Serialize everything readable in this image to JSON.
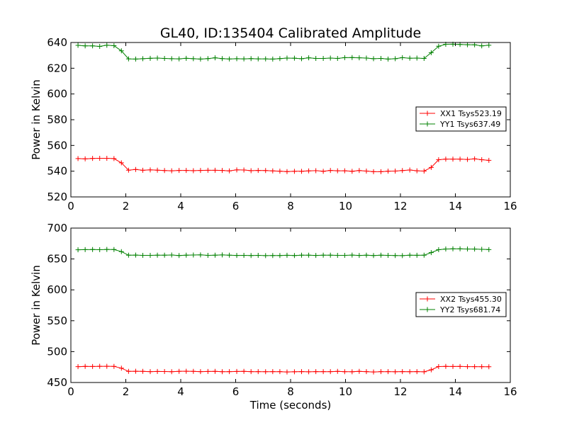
{
  "figure": {
    "title": "GL40, ID:135404 Calibrated Amplitude",
    "xlabel": "Time (seconds)"
  },
  "colors": {
    "red": "#ff0000",
    "green": "#008000"
  },
  "chart_data": [
    {
      "type": "line",
      "title": "GL40, ID:135404 Calibrated Amplitude",
      "xlabel": "",
      "ylabel": "Power in Kelvin",
      "xlim": [
        0,
        16
      ],
      "ylim": [
        520,
        640
      ],
      "xticks": [
        0,
        2,
        4,
        6,
        8,
        10,
        12,
        14,
        16
      ],
      "yticks": [
        520,
        540,
        560,
        580,
        600,
        620,
        640
      ],
      "grid": false,
      "legend_position": "right",
      "x": [
        0.26,
        0.52,
        0.79,
        1.05,
        1.31,
        1.57,
        1.84,
        2.1,
        2.36,
        2.62,
        2.89,
        3.15,
        3.41,
        3.67,
        3.94,
        4.2,
        4.46,
        4.72,
        4.99,
        5.25,
        5.51,
        5.77,
        6.04,
        6.3,
        6.56,
        6.82,
        7.09,
        7.35,
        7.61,
        7.87,
        8.14,
        8.4,
        8.66,
        8.92,
        9.19,
        9.45,
        9.71,
        9.97,
        10.24,
        10.5,
        10.76,
        11.02,
        11.29,
        11.55,
        11.81,
        12.07,
        12.34,
        12.6,
        12.86,
        13.12,
        13.39,
        13.65,
        13.91,
        14.17,
        14.44,
        14.7,
        14.96,
        15.22
      ],
      "series": [
        {
          "name": "XX1 Tsys523.19",
          "color": "#ff0000",
          "values": [
            549.8,
            549.6,
            549.9,
            550.0,
            550.0,
            549.8,
            546.5,
            540.8,
            541.3,
            540.7,
            541.0,
            540.8,
            540.5,
            540.3,
            540.6,
            540.6,
            540.4,
            540.6,
            540.7,
            540.7,
            540.6,
            540.2,
            541.0,
            540.9,
            540.4,
            540.6,
            540.5,
            540.2,
            540.0,
            539.7,
            539.9,
            539.9,
            540.2,
            540.4,
            539.9,
            540.6,
            540.3,
            540.3,
            539.9,
            540.5,
            540.1,
            539.6,
            539.6,
            540.0,
            540.1,
            540.5,
            540.9,
            540.3,
            540.1,
            542.9,
            548.9,
            549.4,
            549.4,
            549.4,
            549.1,
            549.6,
            548.9,
            548.4
          ]
        },
        {
          "name": "YY1 Tsys637.49",
          "color": "#008000",
          "values": [
            637.8,
            637.4,
            637.4,
            637.0,
            637.9,
            637.5,
            633.5,
            627.3,
            627.1,
            627.4,
            627.7,
            627.9,
            627.6,
            627.4,
            627.3,
            627.7,
            627.4,
            627.1,
            627.5,
            628.1,
            627.5,
            627.2,
            627.4,
            627.3,
            627.5,
            627.3,
            627.3,
            627.1,
            627.5,
            627.9,
            627.8,
            627.4,
            628.1,
            627.6,
            627.6,
            627.9,
            627.6,
            628.2,
            628.3,
            628.1,
            627.9,
            627.4,
            627.6,
            627.1,
            627.4,
            628.2,
            627.8,
            627.9,
            627.6,
            632.1,
            637.1,
            638.6,
            638.7,
            638.5,
            638.3,
            638.2,
            637.4,
            637.9
          ]
        }
      ]
    },
    {
      "type": "line",
      "title": "",
      "xlabel": "Time (seconds)",
      "ylabel": "Power in Kelvin",
      "xlim": [
        0,
        16
      ],
      "ylim": [
        450,
        700
      ],
      "xticks": [
        0,
        2,
        4,
        6,
        8,
        10,
        12,
        14,
        16
      ],
      "yticks": [
        450,
        500,
        550,
        600,
        650,
        700
      ],
      "grid": false,
      "legend_position": "right",
      "x": [
        0.26,
        0.52,
        0.79,
        1.05,
        1.31,
        1.57,
        1.84,
        2.1,
        2.36,
        2.62,
        2.89,
        3.15,
        3.41,
        3.67,
        3.94,
        4.2,
        4.46,
        4.72,
        4.99,
        5.25,
        5.51,
        5.77,
        6.04,
        6.3,
        6.56,
        6.82,
        7.09,
        7.35,
        7.61,
        7.87,
        8.14,
        8.4,
        8.66,
        8.92,
        9.19,
        9.45,
        9.71,
        9.97,
        10.24,
        10.5,
        10.76,
        11.02,
        11.29,
        11.55,
        11.81,
        12.07,
        12.34,
        12.6,
        12.86,
        13.12,
        13.39,
        13.65,
        13.91,
        14.17,
        14.44,
        14.7,
        14.96,
        15.22
      ],
      "series": [
        {
          "name": "XX2 Tsys455.30",
          "color": "#ff0000",
          "values": [
            475.6,
            476.1,
            475.9,
            476.2,
            476.3,
            476.1,
            473.2,
            468.0,
            468.2,
            468.1,
            467.6,
            467.9,
            467.8,
            467.5,
            468.1,
            468.2,
            468.0,
            467.6,
            467.9,
            468.0,
            467.5,
            467.6,
            467.9,
            468.1,
            467.6,
            467.6,
            467.5,
            467.6,
            467.6,
            467.1,
            467.4,
            467.7,
            467.3,
            467.7,
            467.6,
            467.6,
            468.0,
            467.5,
            467.4,
            468.0,
            467.6,
            467.1,
            467.6,
            467.6,
            467.4,
            467.7,
            467.5,
            467.7,
            467.3,
            470.5,
            475.8,
            476.1,
            475.9,
            476.0,
            475.7,
            475.7,
            475.6,
            475.5
          ]
        },
        {
          "name": "YY2 Tsys681.74",
          "color": "#008000",
          "values": [
            664.9,
            665.1,
            665.3,
            665.0,
            665.4,
            665.3,
            661.9,
            656.1,
            656.3,
            655.9,
            655.8,
            656.1,
            656.2,
            656.4,
            655.6,
            656.1,
            656.4,
            656.6,
            655.8,
            656.2,
            656.5,
            656.1,
            655.7,
            655.9,
            655.6,
            655.8,
            655.4,
            655.6,
            655.5,
            656.0,
            655.5,
            656.1,
            656.2,
            655.7,
            656.2,
            656.2,
            655.9,
            655.8,
            656.3,
            655.7,
            656.1,
            655.6,
            656.2,
            655.8,
            655.6,
            655.4,
            656.2,
            656.0,
            656.1,
            660.3,
            665.0,
            666.1,
            666.5,
            666.5,
            666.1,
            666.0,
            665.6,
            665.2
          ]
        }
      ]
    }
  ]
}
